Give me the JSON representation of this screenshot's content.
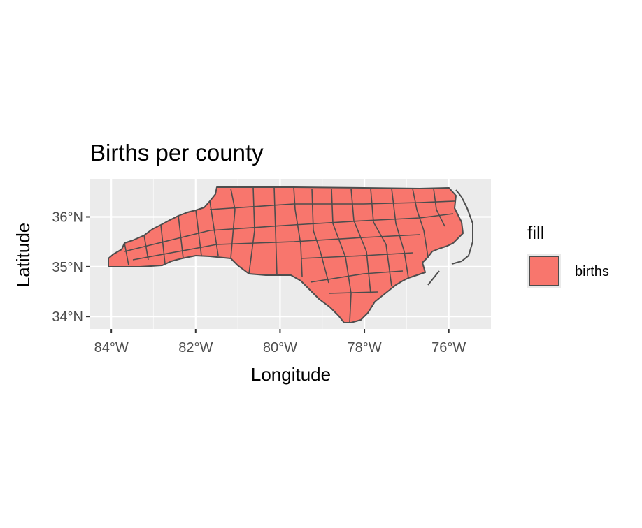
{
  "chart_data": {
    "type": "map",
    "title": "Births per county",
    "xlabel": "Longitude",
    "ylabel": "Latitude",
    "x_ticks": [
      "84°W",
      "82°W",
      "80°W",
      "78°W",
      "76°W"
    ],
    "y_ticks": [
      "36°N",
      "35°N",
      "34°N"
    ],
    "x_tick_values": [
      -84,
      -82,
      -80,
      -78,
      -76
    ],
    "y_tick_values": [
      36,
      35,
      34
    ],
    "xlim": [
      -84.5,
      -75
    ],
    "ylim": [
      33.75,
      36.75
    ],
    "grid": true,
    "panel_background": "#ebebeb",
    "legend": {
      "title": "fill",
      "entries": [
        {
          "label": "births",
          "color": "#f8766d"
        }
      ],
      "position": "right"
    },
    "region": "North Carolina counties",
    "fill_color": "#f8766d",
    "border_color": "#4d4d4d"
  }
}
